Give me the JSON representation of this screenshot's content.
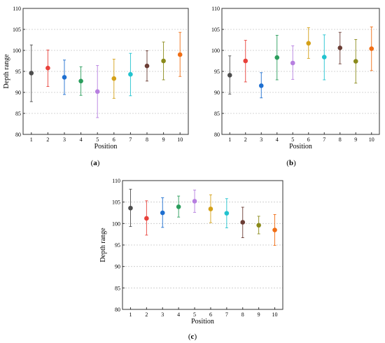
{
  "chart_data": [
    {
      "id": "a",
      "type": "scatter",
      "panel_label": "a",
      "xlabel": "Position",
      "ylabel": "Depth range",
      "ylim": [
        80,
        110
      ],
      "yticks": [
        80,
        85,
        90,
        95,
        100,
        105,
        110
      ],
      "x": [
        1,
        2,
        3,
        4,
        5,
        6,
        7,
        8,
        9,
        10
      ],
      "xtick_labels": [
        "1",
        "2",
        "3",
        "4",
        "5",
        "6",
        "7",
        "8",
        "9",
        "10"
      ],
      "grid": "horizontal dashed",
      "values": [
        94.6,
        95.8,
        93.6,
        92.7,
        90.2,
        93.3,
        94.3,
        96.3,
        97.5,
        99.0
      ],
      "err_low": [
        87.8,
        91.4,
        89.5,
        89.3,
        84.0,
        88.6,
        89.2,
        92.7,
        93.0,
        93.8
      ],
      "err_high": [
        101.3,
        100.1,
        97.7,
        96.1,
        96.4,
        97.9,
        99.3,
        99.9,
        102.0,
        104.3
      ],
      "colors": [
        "#4d4d4d",
        "#e8413b",
        "#1e6fd0",
        "#2a9d5c",
        "#b77fe0",
        "#d4a017",
        "#22c3cf",
        "#6b3d35",
        "#8a8a1a",
        "#f06e15"
      ]
    },
    {
      "id": "b",
      "type": "scatter",
      "panel_label": "b",
      "xlabel": "Position",
      "ylabel": "",
      "ylim": [
        80,
        110
      ],
      "yticks": [
        80,
        85,
        90,
        95,
        100,
        105,
        110
      ],
      "x": [
        1,
        2,
        3,
        4,
        5,
        6,
        7,
        8,
        9,
        10
      ],
      "xtick_labels": [
        "1",
        "2",
        "3",
        "4",
        "5",
        "6",
        "7",
        "8",
        "9",
        "10"
      ],
      "grid": "horizontal dashed",
      "values": [
        94.1,
        97.5,
        91.6,
        98.3,
        97.0,
        101.7,
        98.4,
        100.6,
        97.4,
        100.4
      ],
      "err_low": [
        89.6,
        92.5,
        88.7,
        93.0,
        93.1,
        98.1,
        93.0,
        96.8,
        92.2,
        95.2
      ],
      "err_high": [
        98.7,
        102.4,
        94.7,
        103.6,
        101.1,
        105.4,
        103.7,
        104.3,
        102.6,
        105.6
      ],
      "colors": [
        "#4d4d4d",
        "#e8413b",
        "#1e6fd0",
        "#2a9d5c",
        "#b77fe0",
        "#d4a017",
        "#22c3cf",
        "#6b3d35",
        "#8a8a1a",
        "#f06e15"
      ]
    },
    {
      "id": "c",
      "type": "scatter",
      "panel_label": "c",
      "xlabel": "Position",
      "ylabel": "Depth range",
      "ylim": [
        80,
        110
      ],
      "yticks": [
        80,
        85,
        90,
        95,
        100,
        105,
        110
      ],
      "x": [
        1,
        2,
        3,
        4,
        5,
        6,
        7,
        8,
        9,
        10
      ],
      "xtick_labels": [
        "1",
        "2",
        "3",
        "4",
        "5",
        "6",
        "7",
        "8",
        "9",
        "10"
      ],
      "grid": "horizontal dashed",
      "values": [
        103.6,
        101.2,
        102.5,
        103.9,
        105.2,
        103.4,
        102.4,
        100.3,
        99.6,
        98.5
      ],
      "err_low": [
        99.3,
        97.3,
        99.1,
        101.5,
        102.6,
        100.2,
        99.0,
        96.7,
        97.6,
        94.9
      ],
      "err_high": [
        108.0,
        105.3,
        106.0,
        106.4,
        107.8,
        106.7,
        105.8,
        103.8,
        101.7,
        102.1
      ],
      "colors": [
        "#4d4d4d",
        "#e8413b",
        "#1e6fd0",
        "#2a9d5c",
        "#b77fe0",
        "#d4a017",
        "#22c3cf",
        "#6b3d35",
        "#8a8a1a",
        "#f06e15"
      ]
    }
  ]
}
